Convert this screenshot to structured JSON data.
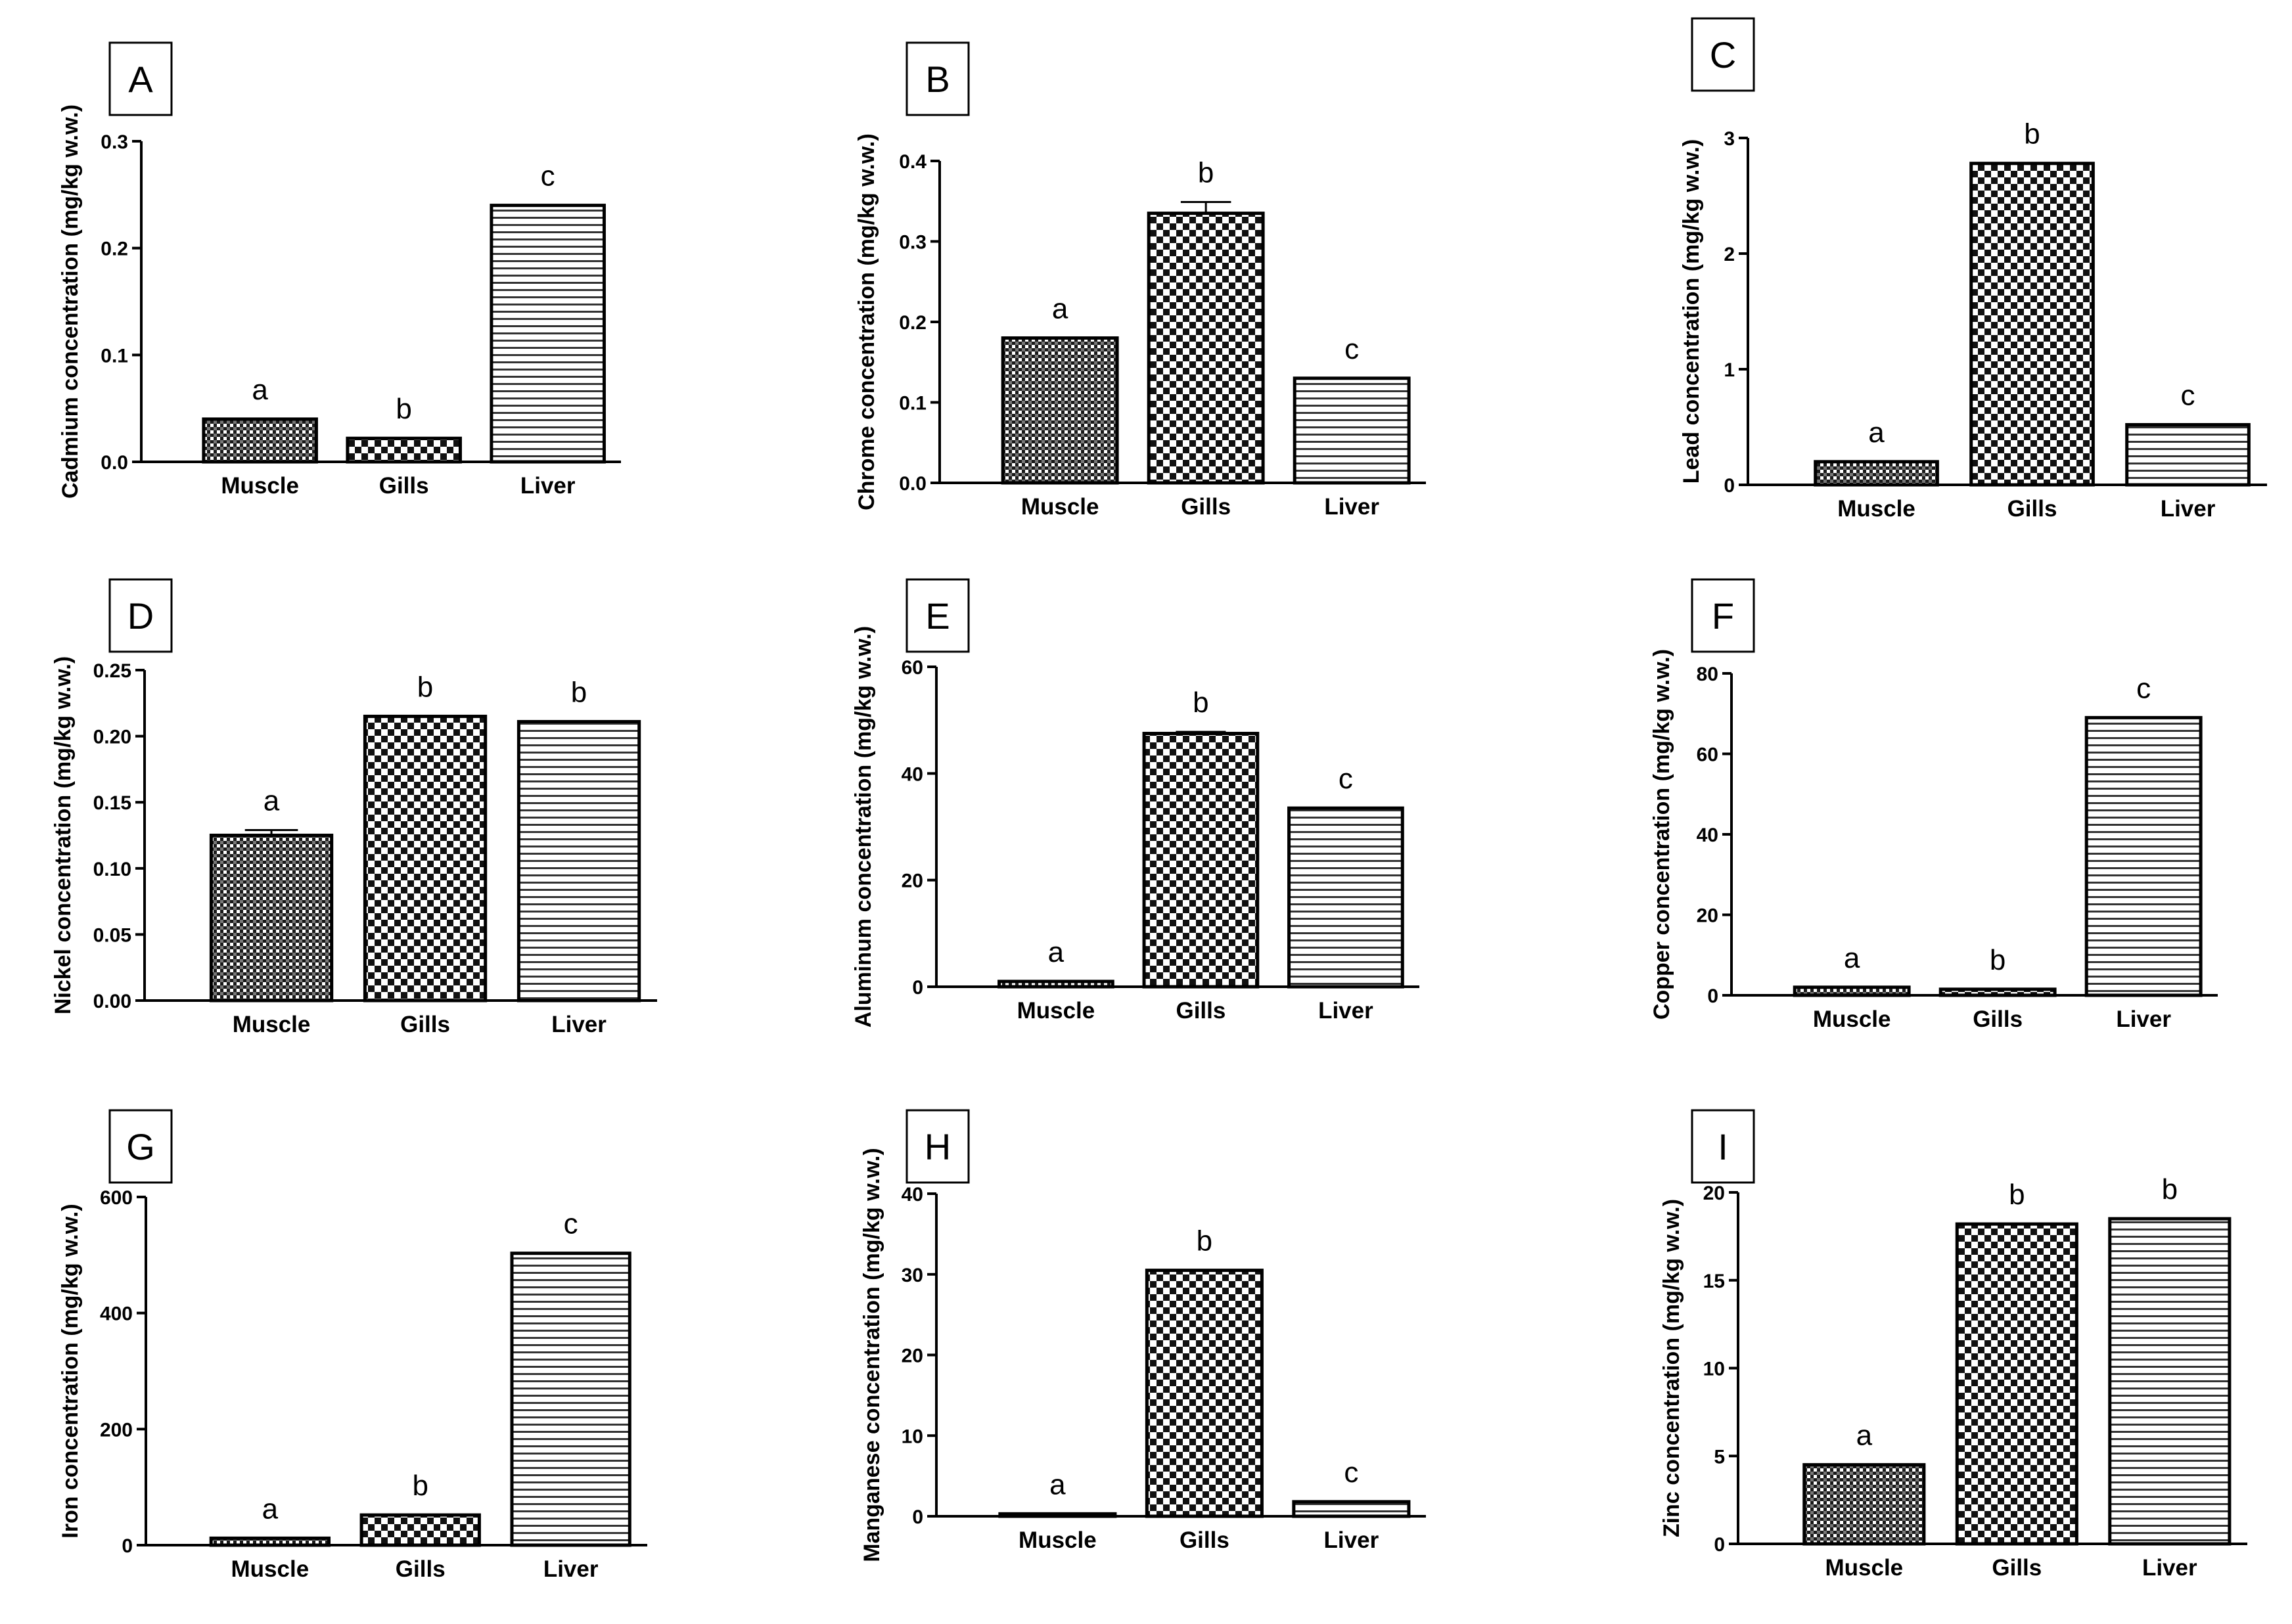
{
  "chart_data": [
    {
      "type": "bar",
      "panel": "A",
      "categories": [
        "Muscle",
        "Gills",
        "Liver"
      ],
      "values": [
        0.04,
        0.022,
        0.24
      ],
      "errors": [
        0,
        0,
        0
      ],
      "significance": [
        "a",
        "b",
        "c"
      ],
      "ylabel": "Cadmium concentration (mg/kg w.w.)",
      "ylim": [
        0,
        0.3
      ],
      "yticks": [
        "0.0",
        "0.1",
        "0.2",
        "0.3"
      ],
      "patterns": [
        "dense-check",
        "check",
        "hlines"
      ]
    },
    {
      "type": "bar",
      "panel": "B",
      "categories": [
        "Muscle",
        "Gills",
        "Liver"
      ],
      "values": [
        0.18,
        0.335,
        0.13
      ],
      "errors": [
        0,
        0.014,
        0
      ],
      "significance": [
        "a",
        "b",
        "c"
      ],
      "ylabel": "Chrome concentration (mg/kg w.w.)",
      "ylim": [
        0,
        0.4
      ],
      "yticks": [
        "0.0",
        "0.1",
        "0.2",
        "0.3",
        "0.4"
      ],
      "patterns": [
        "dense-check",
        "check",
        "hlines"
      ]
    },
    {
      "type": "bar",
      "panel": "C",
      "categories": [
        "Muscle",
        "Gills",
        "Liver"
      ],
      "values": [
        0.2,
        2.78,
        0.52
      ],
      "errors": [
        0,
        0,
        0
      ],
      "significance": [
        "a",
        "b",
        "c"
      ],
      "ylabel": "Lead concentration (mg/kg w.w.)",
      "ylim": [
        0,
        3
      ],
      "yticks": [
        "0",
        "1",
        "2",
        "3"
      ],
      "patterns": [
        "dense-check",
        "check",
        "hlines"
      ]
    },
    {
      "type": "bar",
      "panel": "D",
      "categories": [
        "Muscle",
        "Gills",
        "Liver"
      ],
      "values": [
        0.125,
        0.215,
        0.211
      ],
      "errors": [
        0.004,
        0,
        0
      ],
      "significance": [
        "a",
        "b",
        "b"
      ],
      "ylabel": "Nickel concentration (mg/kg w.w.)",
      "ylim": [
        0,
        0.25
      ],
      "yticks": [
        "0.00",
        "0.05",
        "0.10",
        "0.15",
        "0.20",
        "0.25"
      ],
      "patterns": [
        "dense-check",
        "check",
        "hlines"
      ]
    },
    {
      "type": "bar",
      "panel": "E",
      "categories": [
        "Muscle",
        "Gills",
        "Liver"
      ],
      "values": [
        1,
        47.5,
        33.5
      ],
      "errors": [
        0,
        0.3,
        0
      ],
      "significance": [
        "a",
        "b",
        "c"
      ],
      "ylabel": "Aluminum concentration (mg/kg w.w.)",
      "ylim": [
        0,
        60
      ],
      "yticks": [
        "0",
        "20",
        "40",
        "60"
      ],
      "patterns": [
        "dense-check",
        "check",
        "hlines"
      ]
    },
    {
      "type": "bar",
      "panel": "F",
      "categories": [
        "Muscle",
        "Gills",
        "Liver"
      ],
      "values": [
        2,
        1.5,
        69
      ],
      "errors": [
        0,
        0,
        0
      ],
      "significance": [
        "a",
        "b",
        "c"
      ],
      "ylabel": "Copper concentration (mg/kg w.w.)",
      "ylim": [
        0,
        80
      ],
      "yticks": [
        "0",
        "20",
        "40",
        "60",
        "80"
      ],
      "patterns": [
        "dense-check",
        "check",
        "hlines"
      ]
    },
    {
      "type": "bar",
      "panel": "G",
      "categories": [
        "Muscle",
        "Gills",
        "Liver"
      ],
      "values": [
        12,
        52,
        503
      ],
      "errors": [
        0,
        0,
        0
      ],
      "significance": [
        "a",
        "b",
        "c"
      ],
      "ylabel": "Iron concentration (mg/kg w.w.)",
      "ylim": [
        0,
        600
      ],
      "yticks": [
        "0",
        "200",
        "400",
        "600"
      ],
      "patterns": [
        "dense-check",
        "check",
        "hlines"
      ]
    },
    {
      "type": "bar",
      "panel": "H",
      "categories": [
        "Muscle",
        "Gills",
        "Liver"
      ],
      "values": [
        0.3,
        30.5,
        1.8
      ],
      "errors": [
        0,
        0,
        0
      ],
      "significance": [
        "a",
        "b",
        "c"
      ],
      "ylabel": "Manganese concentration (mg/kg w.w.)",
      "ylim": [
        0,
        40
      ],
      "yticks": [
        "0",
        "10",
        "20",
        "30",
        "40"
      ],
      "patterns": [
        "dense-check",
        "check",
        "hlines"
      ]
    },
    {
      "type": "bar",
      "panel": "I",
      "categories": [
        "Muscle",
        "Gills",
        "Liver"
      ],
      "values": [
        4.5,
        18.2,
        18.5
      ],
      "errors": [
        0,
        0,
        0
      ],
      "significance": [
        "a",
        "b",
        "b"
      ],
      "ylabel": "Zinc concentration (mg/kg w.w.)",
      "ylim": [
        0,
        20
      ],
      "yticks": [
        "0",
        "5",
        "10",
        "15",
        "20"
      ],
      "patterns": [
        "dense-check",
        "check",
        "hlines"
      ]
    }
  ]
}
